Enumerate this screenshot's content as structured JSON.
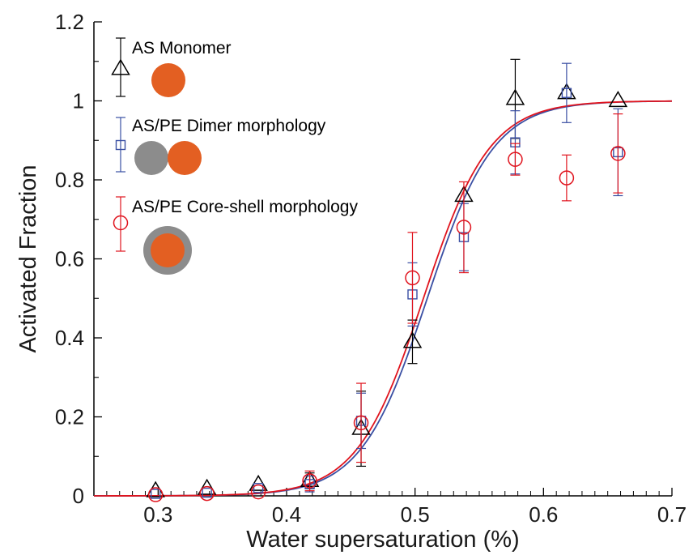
{
  "chart_data": {
    "type": "scatter",
    "xlabel": "Water supersaturation (%)",
    "ylabel": "Activated Fraction",
    "xlim": [
      0.25,
      0.7
    ],
    "ylim": [
      0,
      1.2
    ],
    "x_ticks": [
      0.3,
      0.4,
      0.5,
      0.6,
      0.7
    ],
    "y_ticks": [
      0,
      0.2,
      0.4,
      0.6,
      0.8,
      1.0,
      1.2
    ],
    "x_tick_labels": [
      "0.3",
      "0.4",
      "0.5",
      "0.6",
      "0.7"
    ],
    "y_tick_labels": [
      "0",
      "0.2",
      "0.4",
      "0.6",
      "0.8",
      "1",
      "1.2"
    ],
    "grid": false,
    "legend_position": "top-left",
    "series": [
      {
        "name": "AS Monomer",
        "marker": "triangle",
        "color": "#000000",
        "points": [
          {
            "x": 0.298,
            "y": 0.012,
            "err": 0.0
          },
          {
            "x": 0.338,
            "y": 0.018,
            "err": 0.0
          },
          {
            "x": 0.378,
            "y": 0.028,
            "err": 0.0
          },
          {
            "x": 0.418,
            "y": 0.038,
            "err": 0.02
          },
          {
            "x": 0.458,
            "y": 0.17,
            "err": 0.095
          },
          {
            "x": 0.498,
            "y": 0.39,
            "err": 0.055
          },
          {
            "x": 0.538,
            "y": 0.76,
            "err": 0.0
          },
          {
            "x": 0.578,
            "y": 1.005,
            "err": 0.1
          },
          {
            "x": 0.618,
            "y": 1.02,
            "err": 0.0
          },
          {
            "x": 0.658,
            "y": 1.0,
            "err": 0.0
          }
        ]
      },
      {
        "name": "AS/PE Dimer morphology",
        "marker": "square",
        "color": "#3a4fa3",
        "points": [
          {
            "x": 0.298,
            "y": 0.005,
            "err": 0.0
          },
          {
            "x": 0.338,
            "y": 0.008,
            "err": 0.0
          },
          {
            "x": 0.378,
            "y": 0.02,
            "err": 0.0
          },
          {
            "x": 0.418,
            "y": 0.03,
            "err": 0.02
          },
          {
            "x": 0.458,
            "y": 0.19,
            "err": 0.07
          },
          {
            "x": 0.498,
            "y": 0.51,
            "err": 0.08
          },
          {
            "x": 0.538,
            "y": 0.655,
            "err": 0.085
          },
          {
            "x": 0.578,
            "y": 0.895,
            "err": 0.08
          },
          {
            "x": 0.618,
            "y": 1.02,
            "err": 0.075
          },
          {
            "x": 0.658,
            "y": 0.87,
            "err": 0.11
          }
        ]
      },
      {
        "name": "AS/PE Core-shell morphology",
        "marker": "circle",
        "color": "#e0141e",
        "points": [
          {
            "x": 0.298,
            "y": 0.003,
            "err": 0.0
          },
          {
            "x": 0.338,
            "y": 0.006,
            "err": 0.0
          },
          {
            "x": 0.378,
            "y": 0.01,
            "err": 0.0
          },
          {
            "x": 0.418,
            "y": 0.038,
            "err": 0.025
          },
          {
            "x": 0.458,
            "y": 0.185,
            "err": 0.1
          },
          {
            "x": 0.498,
            "y": 0.552,
            "err": 0.115
          },
          {
            "x": 0.538,
            "y": 0.68,
            "err": 0.115
          },
          {
            "x": 0.578,
            "y": 0.852,
            "err": 0.04
          },
          {
            "x": 0.618,
            "y": 0.805,
            "err": 0.058
          },
          {
            "x": 0.658,
            "y": 0.867,
            "err": 0.1
          }
        ]
      }
    ],
    "fit_curves": [
      {
        "color": "#3a4fa3",
        "x0": 0.5095,
        "width": 0.0258
      },
      {
        "color": "#e0141e",
        "x0": 0.5065,
        "width": 0.0258
      }
    ],
    "legend_icons": {
      "orange": "#e35f22",
      "gray": "#8c8c8c"
    }
  }
}
